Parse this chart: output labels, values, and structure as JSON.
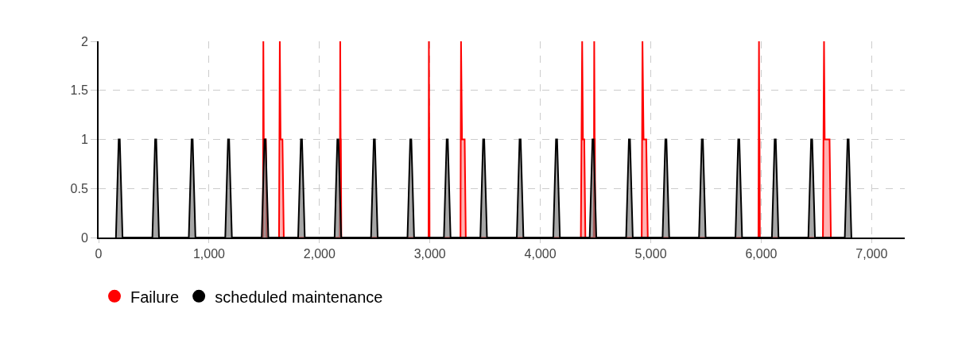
{
  "chart_data": {
    "type": "area",
    "xlim": [
      0,
      7300
    ],
    "ylim": [
      0,
      2
    ],
    "xticks": [
      0,
      {
        "value": 1000,
        "label": "1,000"
      },
      {
        "value": 2000,
        "label": "2,000"
      },
      {
        "value": 3000,
        "label": "3,000"
      },
      {
        "value": 4000,
        "label": "4,000"
      },
      {
        "value": 5000,
        "label": "5,000"
      },
      {
        "value": 6000,
        "label": "6,000"
      },
      {
        "value": 7000,
        "label": "7,000"
      }
    ],
    "yticks": [
      0,
      0.5,
      1,
      1.5,
      2
    ],
    "grid": true,
    "legend": "bottom left",
    "line_style": "solid",
    "series": [
      {
        "name": "Failure",
        "color": "#ff0000",
        "x": [
          1488,
          1492,
          1496,
          1515,
          1522,
          1634,
          1641,
          1648,
          1665,
          1677,
          2184,
          2188,
          2192,
          2194,
          2198,
          2988,
          2991,
          2994,
          2995,
          2997,
          3277,
          3282,
          3291,
          3315,
          3325,
          4367,
          4379,
          4386,
          4398,
          4408,
          4484,
          4488,
          4492,
          4494,
          4497,
          4918,
          4925,
          4935,
          4959,
          4973,
          5975,
          5980,
          5983,
          5985,
          5988,
          6559,
          6569,
          6575,
          6619,
          6631
        ],
        "values": [
          0,
          2,
          1,
          1,
          0,
          0,
          2,
          1,
          1,
          0,
          0,
          2,
          1,
          1,
          0,
          0,
          2,
          1,
          1,
          0,
          0,
          2,
          1,
          1,
          0,
          0,
          2,
          1,
          1,
          0,
          0,
          2,
          1,
          1,
          0,
          0,
          2,
          1,
          1,
          0,
          0,
          2,
          1,
          1,
          0,
          0,
          2,
          1,
          1,
          0
        ]
      },
      {
        "name": "scheduled maintenance",
        "color": "#000000",
        "x": [
          157,
          182,
          192,
          217,
          487,
          512,
          522,
          547,
          817,
          842,
          852,
          877,
          1147,
          1172,
          1182,
          1207,
          1477,
          1502,
          1512,
          1537,
          1807,
          1832,
          1842,
          1867,
          2137,
          2162,
          2172,
          2197,
          2467,
          2492,
          2502,
          2527,
          2797,
          2822,
          2832,
          2857,
          3127,
          3152,
          3162,
          3187,
          3457,
          3482,
          3492,
          3517,
          3787,
          3812,
          3822,
          3847,
          4117,
          4142,
          4152,
          4177,
          4447,
          4472,
          4482,
          4507,
          4777,
          4802,
          4812,
          4837,
          5107,
          5132,
          5142,
          5167,
          5437,
          5462,
          5472,
          5497,
          5767,
          5792,
          5802,
          5827,
          6097,
          6122,
          6132,
          6157,
          6427,
          6452,
          6462,
          6487,
          6757,
          6782,
          6792,
          6817
        ],
        "values": [
          0,
          1,
          1,
          0,
          0,
          1,
          1,
          0,
          0,
          1,
          1,
          0,
          0,
          1,
          1,
          0,
          0,
          1,
          1,
          0,
          0,
          1,
          1,
          0,
          0,
          1,
          1,
          0,
          0,
          1,
          1,
          0,
          0,
          1,
          1,
          0,
          0,
          1,
          1,
          0,
          0,
          1,
          1,
          0,
          0,
          1,
          1,
          0,
          0,
          1,
          1,
          0,
          0,
          1,
          1,
          0,
          0,
          1,
          1,
          0,
          0,
          1,
          1,
          0,
          0,
          1,
          1,
          0,
          0,
          1,
          1,
          0,
          0,
          1,
          1,
          0,
          0,
          1,
          1,
          0,
          0,
          1,
          1,
          0
        ]
      }
    ]
  }
}
